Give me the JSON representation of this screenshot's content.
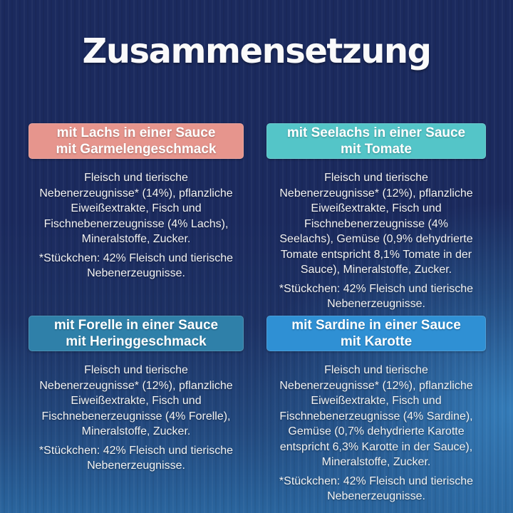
{
  "page": {
    "title": "Zusammensetzung"
  },
  "colors": {
    "background_dark_navy": "#1b2a5e",
    "background_light_blue": "#3886c4",
    "title_text": "#fafafa",
    "body_text": "#f2f2f2",
    "badge_salmon": "#e6958d",
    "badge_teal": "#54c5c8",
    "badge_steel_blue": "#2f80a9",
    "badge_bright_blue": "#2f90d4"
  },
  "sections": [
    {
      "id": "lachs",
      "header_color": "#e6958d",
      "header_lines": [
        "mit Lachs in einer Sauce",
        "mit Garmelengeschmack"
      ],
      "body_lines": [
        "Fleisch und tierische",
        "Nebenerzeugnisse* (14%), pflanzliche",
        "Eiweißextrakte, Fisch und",
        "Fischnebenerzeugnisse (4% Lachs),",
        "Mineralstoffe, Zucker."
      ],
      "footnote_lines": [
        "*Stückchen: 42% Fleisch und tierische",
        "Nebenerzeugnisse."
      ]
    },
    {
      "id": "seelachs",
      "header_color": "#54c5c8",
      "header_lines": [
        "mit Seelachs in einer Sauce",
        "mit Tomate"
      ],
      "body_lines": [
        "Fleisch und tierische",
        "Nebenerzeugnisse* (12%), pflanzliche",
        "Eiweißextrakte, Fisch und",
        "Fischnebenerzeugnisse (4%",
        "Seelachs), Gemüse (0,9% dehydrierte",
        "Tomate entspricht 8,1% Tomate in der",
        "Sauce), Mineralstoffe, Zucker."
      ],
      "footnote_lines": [
        "*Stückchen: 42% Fleisch und tierische",
        "Nebenerzeugnisse."
      ]
    },
    {
      "id": "forelle",
      "header_color": "#2f80a9",
      "header_lines": [
        "mit Forelle in einer Sauce",
        "mit Heringgeschmack"
      ],
      "body_lines": [
        "Fleisch und tierische",
        "Nebenerzeugnisse* (12%), pflanzliche",
        "Eiweißextrakte, Fisch und",
        "Fischnebenerzeugnisse (4% Forelle),",
        "Mineralstoffe, Zucker."
      ],
      "footnote_lines": [
        "*Stückchen: 42% Fleisch und tierische",
        "Nebenerzeugnisse."
      ]
    },
    {
      "id": "sardine",
      "header_color": "#2f90d4",
      "header_lines": [
        "mit Sardine in einer Sauce",
        "mit Karotte"
      ],
      "body_lines": [
        "Fleisch und tierische",
        "Nebenerzeugnisse* (12%), pflanzliche",
        "Eiweißextrakte, Fisch und",
        "Fischnebenerzeugnisse (4% Sardine),",
        "Gemüse (0,7% dehydrierte Karotte",
        "entspricht 6,3% Karotte in der Sauce),",
        "Mineralstoffe, Zucker."
      ],
      "footnote_lines": [
        "*Stückchen: 42% Fleisch und tierische",
        "Nebenerzeugnisse."
      ]
    }
  ]
}
